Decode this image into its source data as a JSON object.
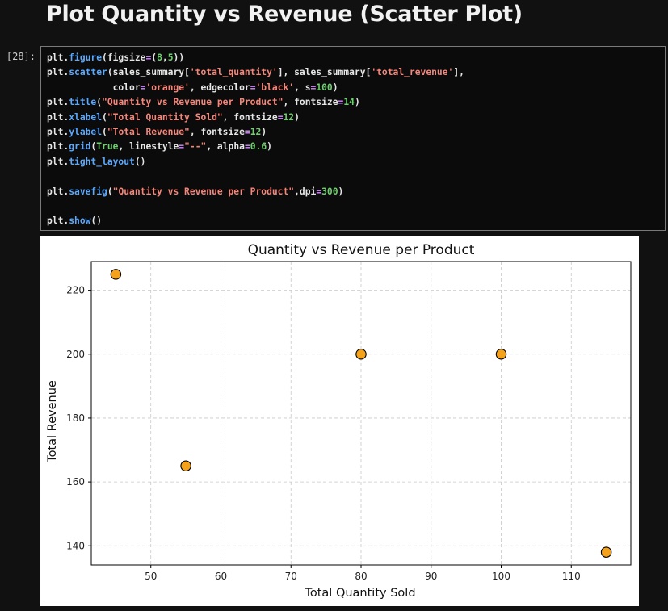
{
  "heading": "Plot Quantity vs Revenue (Scatter Plot)",
  "cell": {
    "prompt": "[28]:",
    "code_lines": [
      [
        {
          "t": "plt.",
          "c": ""
        },
        {
          "t": "figure",
          "c": "fn"
        },
        {
          "t": "(figsize",
          "c": ""
        },
        {
          "t": "=",
          "c": "op"
        },
        {
          "t": "(",
          "c": ""
        },
        {
          "t": "8",
          "c": "num"
        },
        {
          "t": ",",
          "c": ""
        },
        {
          "t": "5",
          "c": "num"
        },
        {
          "t": "))",
          "c": ""
        }
      ],
      [
        {
          "t": "plt.",
          "c": ""
        },
        {
          "t": "scatter",
          "c": "fn"
        },
        {
          "t": "(sales_summary[",
          "c": ""
        },
        {
          "t": "'total_quantity'",
          "c": "str"
        },
        {
          "t": "], sales_summary[",
          "c": ""
        },
        {
          "t": "'total_revenue'",
          "c": "str"
        },
        {
          "t": "],",
          "c": ""
        }
      ],
      [
        {
          "t": "            color",
          "c": ""
        },
        {
          "t": "=",
          "c": "op"
        },
        {
          "t": "'orange'",
          "c": "str"
        },
        {
          "t": ", edgecolor",
          "c": ""
        },
        {
          "t": "=",
          "c": "op"
        },
        {
          "t": "'black'",
          "c": "str"
        },
        {
          "t": ", s",
          "c": ""
        },
        {
          "t": "=",
          "c": "op"
        },
        {
          "t": "100",
          "c": "num"
        },
        {
          "t": ")",
          "c": ""
        }
      ],
      [
        {
          "t": "plt.",
          "c": ""
        },
        {
          "t": "title",
          "c": "fn"
        },
        {
          "t": "(",
          "c": ""
        },
        {
          "t": "\"Quantity vs Revenue per Product\"",
          "c": "str"
        },
        {
          "t": ", fontsize",
          "c": ""
        },
        {
          "t": "=",
          "c": "op"
        },
        {
          "t": "14",
          "c": "num"
        },
        {
          "t": ")",
          "c": ""
        }
      ],
      [
        {
          "t": "plt.",
          "c": ""
        },
        {
          "t": "xlabel",
          "c": "fn"
        },
        {
          "t": "(",
          "c": ""
        },
        {
          "t": "\"Total Quantity Sold\"",
          "c": "str"
        },
        {
          "t": ", fontsize",
          "c": ""
        },
        {
          "t": "=",
          "c": "op"
        },
        {
          "t": "12",
          "c": "num"
        },
        {
          "t": ")",
          "c": ""
        }
      ],
      [
        {
          "t": "plt.",
          "c": ""
        },
        {
          "t": "ylabel",
          "c": "fn"
        },
        {
          "t": "(",
          "c": ""
        },
        {
          "t": "\"Total Revenue\"",
          "c": "str"
        },
        {
          "t": ", fontsize",
          "c": ""
        },
        {
          "t": "=",
          "c": "op"
        },
        {
          "t": "12",
          "c": "num"
        },
        {
          "t": ")",
          "c": ""
        }
      ],
      [
        {
          "t": "plt.",
          "c": ""
        },
        {
          "t": "grid",
          "c": "fn"
        },
        {
          "t": "(",
          "c": ""
        },
        {
          "t": "True",
          "c": "kw"
        },
        {
          "t": ", linestyle",
          "c": ""
        },
        {
          "t": "=",
          "c": "op"
        },
        {
          "t": "\"--\"",
          "c": "str"
        },
        {
          "t": ", alpha",
          "c": ""
        },
        {
          "t": "=",
          "c": "op"
        },
        {
          "t": "0.6",
          "c": "num"
        },
        {
          "t": ")",
          "c": ""
        }
      ],
      [
        {
          "t": "plt.",
          "c": ""
        },
        {
          "t": "tight_layout",
          "c": "fn"
        },
        {
          "t": "()",
          "c": ""
        }
      ],
      [],
      [
        {
          "t": "plt.",
          "c": ""
        },
        {
          "t": "savefig",
          "c": "fn"
        },
        {
          "t": "(",
          "c": ""
        },
        {
          "t": "\"Quantity vs Revenue per Product\"",
          "c": "str"
        },
        {
          "t": ",dpi",
          "c": ""
        },
        {
          "t": "=",
          "c": "op"
        },
        {
          "t": "300",
          "c": "num"
        },
        {
          "t": ")",
          "c": ""
        }
      ],
      [],
      [
        {
          "t": "plt.",
          "c": ""
        },
        {
          "t": "show",
          "c": "fn"
        },
        {
          "t": "()",
          "c": ""
        }
      ]
    ]
  },
  "colors": {
    "marker_fill": "#f5a21b",
    "marker_edge": "#000000",
    "grid": "#c8c8c8"
  },
  "chart_data": {
    "type": "scatter",
    "title": "Quantity vs Revenue per Product",
    "xlabel": "Total Quantity Sold",
    "ylabel": "Total Revenue",
    "x": [
      45,
      55,
      80,
      100,
      115
    ],
    "y": [
      225,
      165,
      200,
      200,
      138
    ],
    "xlim": [
      41.5,
      118.5
    ],
    "ylim": [
      134,
      229
    ],
    "xticks": [
      50,
      60,
      70,
      80,
      90,
      100,
      110
    ],
    "yticks": [
      140,
      160,
      180,
      200,
      220
    ],
    "grid": true
  }
}
